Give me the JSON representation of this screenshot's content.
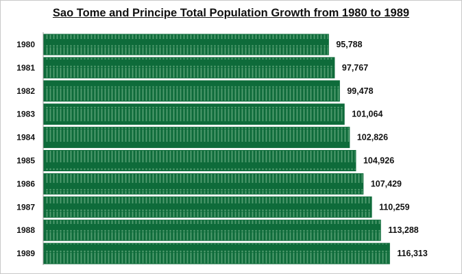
{
  "chart_data": {
    "type": "bar",
    "orientation": "horizontal",
    "title": "Sao Tome and Principe Total Population Growth from 1980 to 1989",
    "categories": [
      "1980",
      "1981",
      "1982",
      "1983",
      "1984",
      "1985",
      "1986",
      "1987",
      "1988",
      "1989"
    ],
    "values": [
      95788,
      97767,
      99478,
      101064,
      102826,
      104926,
      107429,
      110259,
      113288,
      116313
    ],
    "data_labels": [
      "95,788",
      "97,767",
      "99,478",
      "101,064",
      "102,826",
      "104,926",
      "107,429",
      "110,259",
      "113,288",
      "116,313"
    ],
    "xlabel": "",
    "ylabel": "",
    "xlim": [
      0,
      140000
    ],
    "grid": false,
    "legend": "none",
    "colors": {
      "bar": "#0e6b3a",
      "bar_pattern": "#4f9a6d"
    }
  }
}
